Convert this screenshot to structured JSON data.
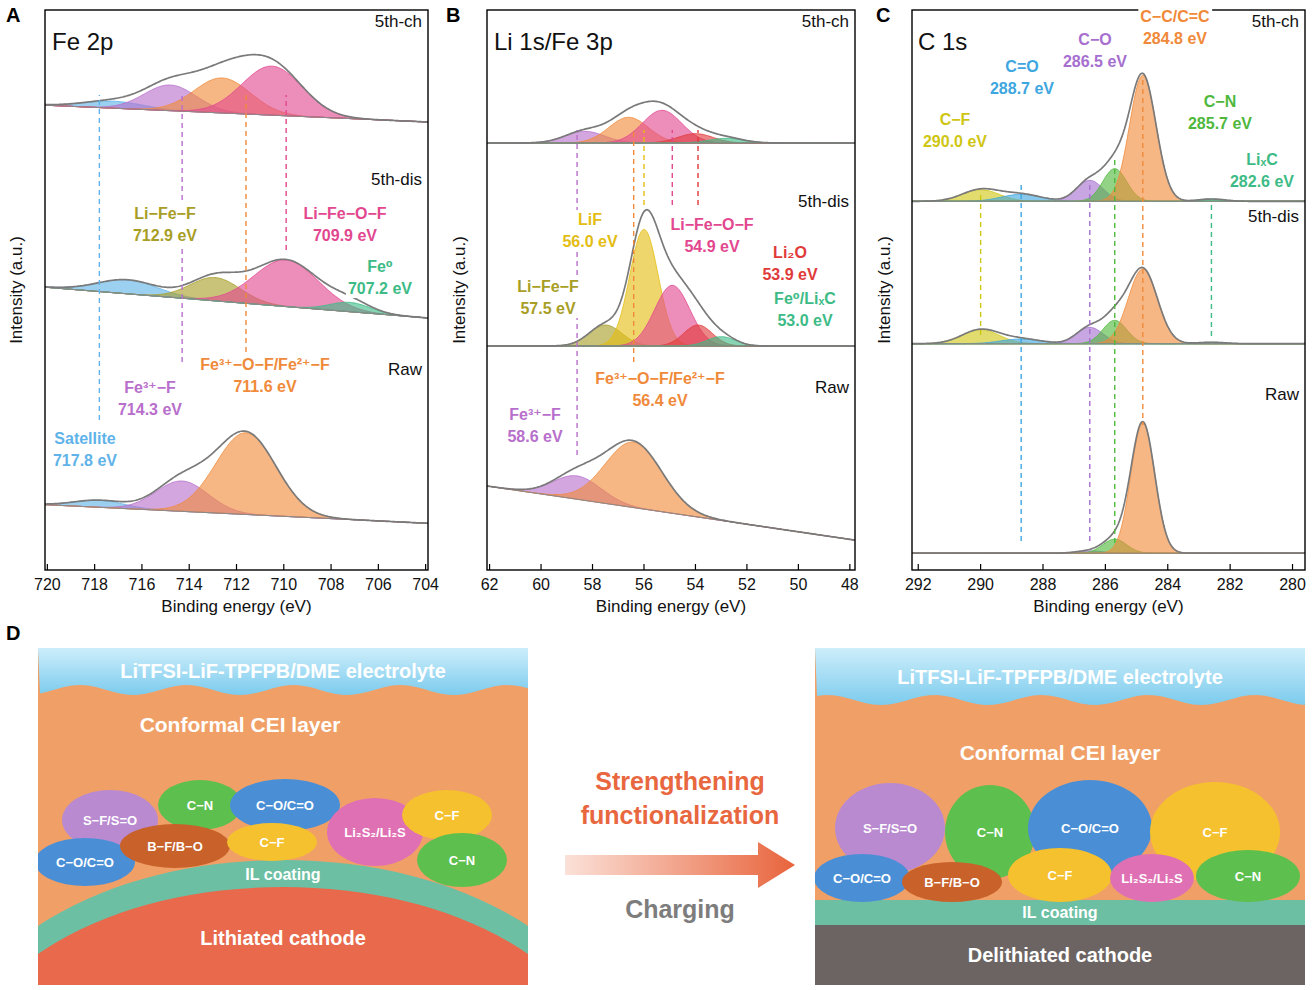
{
  "chart_data": [
    {
      "type": "line",
      "panel_label": "A",
      "title": "Fe 2p",
      "x_label": "Binding energy (eV)",
      "y_label": "Intensity (a.u.)",
      "xlim": [
        720.1,
        703.9
      ],
      "xticks": [
        720,
        718,
        716,
        714,
        712,
        710,
        708,
        706,
        704
      ],
      "ylim": [
        0,
        12
      ],
      "tick_labels": "x",
      "color": "#7a7a7a",
      "series": [
        {
          "name": "Raw",
          "background": [
            1.4,
            1.0
          ],
          "peaks": [
            {
              "center": 717.8,
              "height": 0.15,
              "fwhm": 2.5,
              "color": "#5fb3e8",
              "label": "Satellite",
              "value_label": "717.8 eV"
            },
            {
              "center": 714.3,
              "height": 0.65,
              "fwhm": 2.6,
              "color": "#b86fcc",
              "label": "Fe³⁺−F",
              "value_label": "714.3 eV"
            },
            {
              "center": 711.6,
              "height": 1.75,
              "fwhm": 3.0,
              "color": "#f08a3a",
              "label": "Fe³⁺−O−F/Fe²⁺−F",
              "value_label": "711.6 eV"
            }
          ]
        },
        {
          "name": "5th-dis",
          "background": [
            6.06,
            5.4
          ],
          "peaks": [
            {
              "center": 716.6,
              "height": 0.3,
              "fwhm": 3.0,
              "color": "#5fb3e8"
            },
            {
              "center": 712.9,
              "height": 0.5,
              "fwhm": 2.5,
              "color": "#a89e26",
              "label": "Li−Fe−F",
              "value_label": "712.9 eV"
            },
            {
              "center": 709.9,
              "height": 1.0,
              "fwhm": 3.2,
              "color": "#e2478f",
              "label": "Li−Fe−O−F",
              "value_label": "709.9 eV"
            },
            {
              "center": 707.2,
              "height": 0.2,
              "fwhm": 2.0,
              "color": "#3dbb86",
              "label": "Fe⁰",
              "value_label": "707.2 eV"
            }
          ]
        },
        {
          "name": "5th-ch",
          "background": [
            9.96,
            9.6
          ],
          "peaks": [
            {
              "center": 717.2,
              "height": 0.15,
              "fwhm": 3.0,
              "color": "#5fb3e8"
            },
            {
              "center": 714.8,
              "height": 0.55,
              "fwhm": 2.6,
              "color": "#b86fcc"
            },
            {
              "center": 712.6,
              "height": 0.75,
              "fwhm": 2.8,
              "color": "#f08a3a"
            },
            {
              "center": 710.5,
              "height": 1.05,
              "fwhm": 3.0,
              "color": "#e2478f"
            }
          ]
        }
      ]
    },
    {
      "type": "line",
      "panel_label": "B",
      "title": "Li 1s/Fe 3p",
      "x_label": "Binding energy (eV)",
      "y_label": "Intensity (a.u.)",
      "xlim": [
        62.1,
        47.8
      ],
      "xticks": [
        62,
        60,
        58,
        56,
        54,
        52,
        50,
        48
      ],
      "ylim": [
        0,
        12
      ],
      "tick_labels": "x",
      "color": "#7a7a7a",
      "series": [
        {
          "name": "Raw",
          "background": [
            1.8,
            0.64
          ],
          "peaks": [
            {
              "center": 58.6,
              "height": 0.5,
              "fwhm": 2.2,
              "color": "#b86fcc",
              "label": "Fe³⁺−F",
              "value_label": "58.6 eV"
            },
            {
              "center": 56.4,
              "height": 1.4,
              "fwhm": 2.6,
              "color": "#f08a3a",
              "label": "Fe³⁺−O−F/Fe²⁺−F",
              "value_label": "56.4 eV"
            }
          ]
        },
        {
          "name": "5th-dis",
          "background": [
            4.8,
            4.8
          ],
          "peaks": [
            {
              "center": 57.5,
              "height": 0.45,
              "fwhm": 1.5,
              "color": "#a89e26",
              "label": "Li−Fe−F",
              "value_label": "57.5 eV"
            },
            {
              "center": 56.0,
              "height": 2.5,
              "fwhm": 1.3,
              "color": "#e3bd12",
              "label": "LiF",
              "value_label": "56.0 eV"
            },
            {
              "center": 54.9,
              "height": 1.3,
              "fwhm": 1.6,
              "color": "#e2478f",
              "label": "Li−Fe−O−F",
              "value_label": "54.9 eV"
            },
            {
              "center": 53.9,
              "height": 0.45,
              "fwhm": 1.3,
              "color": "#e03a3a",
              "label": "Li₂O",
              "value_label": "53.9 eV"
            },
            {
              "center": 53.0,
              "height": 0.2,
              "fwhm": 1.3,
              "color": "#3dbb86",
              "label": "Fe⁰/LiₓC",
              "value_label": "53.0 eV"
            }
          ]
        },
        {
          "name": "5th-ch",
          "background": [
            9.15,
            9.15
          ],
          "peaks": [
            {
              "center": 58.3,
              "height": 0.25,
              "fwhm": 1.8,
              "color": "#b86fcc"
            },
            {
              "center": 56.6,
              "height": 0.55,
              "fwhm": 1.8,
              "color": "#f08a3a"
            },
            {
              "center": 55.3,
              "height": 0.7,
              "fwhm": 1.8,
              "color": "#e2478f"
            },
            {
              "center": 54.0,
              "height": 0.2,
              "fwhm": 1.6,
              "color": "#e03a3a"
            },
            {
              "center": 52.8,
              "height": 0.1,
              "fwhm": 1.6,
              "color": "#3dbb86"
            }
          ]
        }
      ]
    },
    {
      "type": "line",
      "panel_label": "C",
      "title": "C 1s",
      "x_label": "Binding energy (eV)",
      "y_label": "Intensity (a.u.)",
      "xlim": [
        292.2,
        279.6
      ],
      "xticks": [
        292,
        290,
        288,
        286,
        284,
        282,
        280
      ],
      "ylim": [
        0,
        12
      ],
      "tick_labels": "x",
      "color": "#7a7a7a",
      "series": [
        {
          "name": "Raw",
          "background": [
            0.36,
            0.36
          ],
          "peaks": [
            {
              "center": 286.5,
              "height": 0.05,
              "fwhm": 1.0,
              "color": "#a66fcf"
            },
            {
              "center": 285.7,
              "height": 0.3,
              "fwhm": 0.9,
              "color": "#4fb83c"
            },
            {
              "center": 284.8,
              "height": 2.8,
              "fwhm": 0.9,
              "color": "#f08a3a"
            }
          ]
        },
        {
          "name": "5th-dis",
          "background": [
            4.85,
            4.85
          ],
          "peaks": [
            {
              "center": 290.0,
              "height": 0.3,
              "fwhm": 1.4,
              "color": "#cfc614"
            },
            {
              "center": 288.7,
              "height": 0.1,
              "fwhm": 1.5,
              "color": "#3ea6e0"
            },
            {
              "center": 286.5,
              "height": 0.35,
              "fwhm": 1.0,
              "color": "#a66fcf"
            },
            {
              "center": 285.7,
              "height": 0.5,
              "fwhm": 0.9,
              "color": "#4fb83c"
            },
            {
              "center": 284.8,
              "height": 1.6,
              "fwhm": 1.1,
              "color": "#f08a3a"
            },
            {
              "center": 282.6,
              "height": 0.03,
              "fwhm": 1.0,
              "color": "#3dbb86"
            }
          ]
        },
        {
          "name": "5th-ch",
          "background": [
            7.9,
            7.9
          ],
          "peaks": [
            {
              "center": 290.0,
              "height": 0.25,
              "fwhm": 1.4,
              "color": "#cfc614",
              "label": "C−F",
              "value_label": "290.0 eV"
            },
            {
              "center": 288.7,
              "height": 0.15,
              "fwhm": 1.5,
              "color": "#3ea6e0",
              "label": "C=O",
              "value_label": "288.7 eV"
            },
            {
              "center": 286.5,
              "height": 0.45,
              "fwhm": 1.0,
              "color": "#a66fcf",
              "label": "C−O",
              "value_label": "286.5 eV"
            },
            {
              "center": 285.7,
              "height": 0.7,
              "fwhm": 0.9,
              "color": "#4fb83c",
              "label": "C−N",
              "value_label": "285.7 eV"
            },
            {
              "center": 284.8,
              "height": 2.7,
              "fwhm": 1.0,
              "color": "#f08a3a",
              "label": "C−C/C=C",
              "value_label": "284.8 eV"
            },
            {
              "center": 282.6,
              "height": 0.05,
              "fwhm": 1.0,
              "color": "#3dbb86",
              "label": "LiₓC",
              "value_label": "282.6 eV"
            }
          ]
        }
      ]
    }
  ],
  "diagram": {
    "panel_label": "D",
    "left": {
      "electrolyte": "LiTFSI-LiF-TPFPB/DME electrolyte",
      "cei": "Conformal CEI layer",
      "coating": "IL coating",
      "cathode": "Lithiated cathode",
      "components": [
        {
          "label": "S−F/S=O",
          "color": "#b98ad0"
        },
        {
          "label": "C−N",
          "color": "#5dbf4e"
        },
        {
          "label": "C−O/C=O",
          "color": "#4a8fd6"
        },
        {
          "label": "Li₂S₂/Li₂S",
          "color": "#e070b4"
        },
        {
          "label": "C−F",
          "color": "#f5c12e"
        },
        {
          "label": "C−O/C=O",
          "color": "#4a8fd6"
        },
        {
          "label": "B−F/B−O",
          "color": "#c8612a"
        },
        {
          "label": "C−F",
          "color": "#f5c12e"
        },
        {
          "label": "C−N",
          "color": "#5dbf4e"
        }
      ]
    },
    "arrow": {
      "text": "Strengthening functionalization",
      "subtext": "Charging"
    },
    "right": {
      "electrolyte": "LiTFSI-LiF-TPFPB/DME electrolyte",
      "cei": "Conformal CEI layer",
      "coating": "IL coating",
      "cathode": "Delithiated cathode",
      "components": [
        {
          "label": "S−F/S=O",
          "color": "#b98ad0"
        },
        {
          "label": "C−N",
          "color": "#5dbf4e"
        },
        {
          "label": "C−O/C=O",
          "color": "#4a8fd6"
        },
        {
          "label": "C−F",
          "color": "#f5c12e"
        },
        {
          "label": "C−O/C=O",
          "color": "#4a8fd6"
        },
        {
          "label": "B−F/B−O",
          "color": "#c8612a"
        },
        {
          "label": "C−F",
          "color": "#f5c12e"
        },
        {
          "label": "Li₂S₂/Li₂S",
          "color": "#e070b4"
        },
        {
          "label": "C−N",
          "color": "#5dbf4e"
        }
      ]
    }
  }
}
